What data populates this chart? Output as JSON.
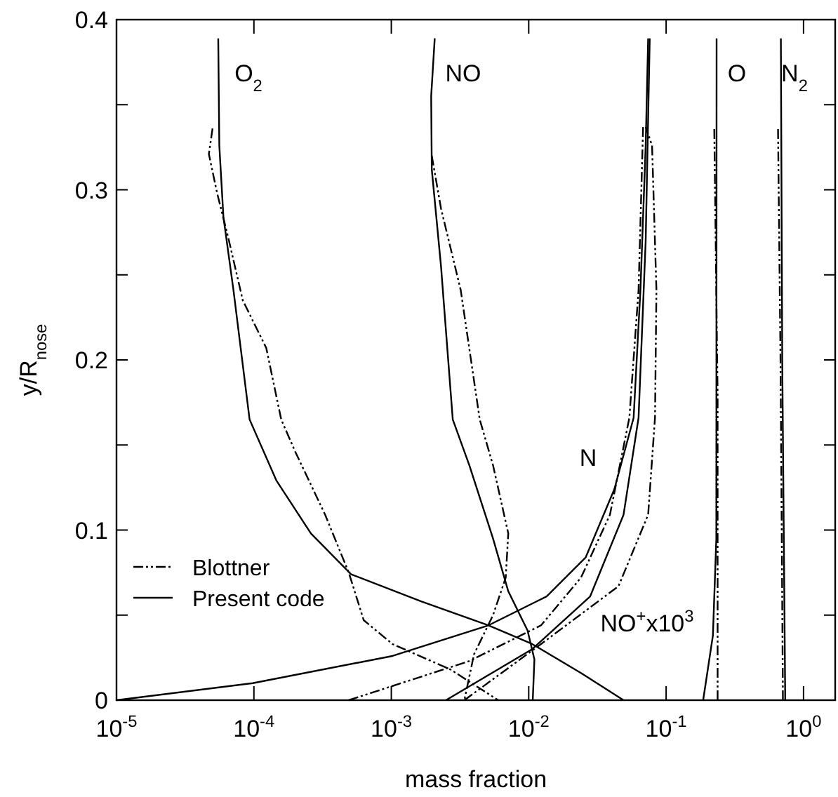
{
  "chart_data": {
    "type": "line",
    "xlabel": "mass fraction",
    "ylabel": "y/R$_{nose}$",
    "log": "x",
    "xlim": [
      1e-05,
      1.7
    ],
    "ylim": [
      0,
      0.4
    ],
    "xticks": [
      {
        "value": 1e-05,
        "label": "10$^{-5}$"
      },
      {
        "value": 0.0001,
        "label": "10$^{-4}$"
      },
      {
        "value": 0.001,
        "label": "10$^{-3}$"
      },
      {
        "value": 0.01,
        "label": "10$^{-2}$"
      },
      {
        "value": 0.1,
        "label": "10$^{-1}$"
      },
      {
        "value": 1,
        "label": "10$^{0}$"
      }
    ],
    "yticks": [
      0,
      {
        "value": 0.05,
        "label": null
      },
      0.1,
      {
        "value": 0.15,
        "label": null
      },
      0.2,
      {
        "value": 0.25,
        "label": null
      },
      0.3,
      {
        "value": 0.35,
        "label": null
      },
      0.4
    ],
    "grid": false,
    "legend": "bottom left",
    "series": [
      {
        "name": "Blottner",
        "color": "#000000",
        "line_style": "dashed",
        "x": [
          5e-05,
          4.7e-05,
          5.4e-05,
          6.5e-05,
          8.3e-05,
          0.000123,
          0.000158,
          0.0002,
          0.00033,
          0.00049,
          0.00063,
          0.00102,
          0.0027,
          0.006
        ],
        "values": [
          0.336,
          0.321,
          0.298,
          0.272,
          0.235,
          0.207,
          0.165,
          0.146,
          0.109,
          0.075,
          0.047,
          0.033,
          0.018,
          0
        ]
      },
      {
        "name": "Present code",
        "color": "#000000",
        "line_style": "solid",
        "x": [
          5.5e-05,
          5.6e-05,
          6e-05,
          7.1e-05,
          9.3e-05,
          0.000146,
          0.00026,
          0.00051,
          0.00166,
          0.0051,
          0.0106,
          0.024,
          0.049
        ],
        "values": [
          0.389,
          0.326,
          0.284,
          0.241,
          0.165,
          0.129,
          0.098,
          0.074,
          0.058,
          0.044,
          0.033,
          0.016,
          0
        ]
      },
      {
        "color": "#000000",
        "line_style": "solid",
        "x": [
          0.00207,
          0.00195,
          0.00197,
          0.0023,
          0.0028,
          0.0037,
          0.0055,
          0.0071,
          0.0098,
          0.011,
          0.0107
        ],
        "values": [
          0.389,
          0.355,
          0.312,
          0.255,
          0.165,
          0.138,
          0.095,
          0.064,
          0.041,
          0.024,
          0
        ]
      },
      {
        "color": "#000000",
        "line_style": "dashed",
        "x": [
          0.00197,
          0.0023,
          0.0032,
          0.0044,
          0.0055,
          0.0071,
          0.0068,
          0.0055,
          0.004,
          0.0034
        ],
        "values": [
          0.32,
          0.289,
          0.241,
          0.165,
          0.138,
          0.098,
          0.072,
          0.05,
          0.027,
          0
        ]
      },
      {
        "color": "#000000",
        "line_style": "solid",
        "x": [
          1e-05,
          9.8e-05,
          0.00102,
          0.0051,
          0.0135,
          0.026,
          0.042,
          0.058,
          0.065,
          0.071,
          0.074
        ],
        "values": [
          0,
          0.01,
          0.026,
          0.044,
          0.061,
          0.084,
          0.124,
          0.166,
          0.241,
          0.326,
          0.389
        ]
      },
      {
        "color": "#000000",
        "line_style": "dashed",
        "x": [
          0.00049,
          0.0037,
          0.0123,
          0.024,
          0.039,
          0.054,
          0.063,
          0.068
        ],
        "values": [
          0,
          0.023,
          0.044,
          0.072,
          0.109,
          0.166,
          0.241,
          0.337
        ]
      },
      {
        "color": "#000000",
        "line_style": "solid",
        "x": [
          0.0025,
          0.0106,
          0.028,
          0.049,
          0.063,
          0.071,
          0.076
        ],
        "values": [
          0,
          0.03,
          0.061,
          0.109,
          0.166,
          0.27,
          0.389
        ]
      },
      {
        "color": "#000000",
        "line_style": "dashed",
        "x": [
          0.0034,
          0.0123,
          0.045,
          0.074,
          0.083,
          0.085,
          0.079,
          0.071
        ],
        "values": [
          0,
          0.033,
          0.067,
          0.109,
          0.166,
          0.241,
          0.326,
          0.337
        ]
      },
      {
        "color": "#000000",
        "line_style": "solid",
        "x": [
          0.186,
          0.219,
          0.232,
          0.233
        ],
        "values": [
          0,
          0.038,
          0.095,
          0.389
        ]
      },
      {
        "color": "#000000",
        "line_style": "dashed",
        "x": [
          0.237,
          0.237,
          0.224
        ],
        "values": [
          0,
          0.18,
          0.337
        ]
      },
      {
        "color": "#000000",
        "line_style": "solid",
        "x": [
          0.736,
          0.7,
          0.684
        ],
        "values": [
          0,
          0.2,
          0.389
        ]
      },
      {
        "color": "#000000",
        "line_style": "dashed",
        "x": [
          0.708,
          0.68,
          0.652
        ],
        "values": [
          0,
          0.2,
          0.337
        ]
      }
    ],
    "annotations": [
      "O$_{2}$",
      "NO",
      "O",
      "N$_{2}$",
      "N",
      "NO$^{+}$x10$^{3}$"
    ]
  }
}
